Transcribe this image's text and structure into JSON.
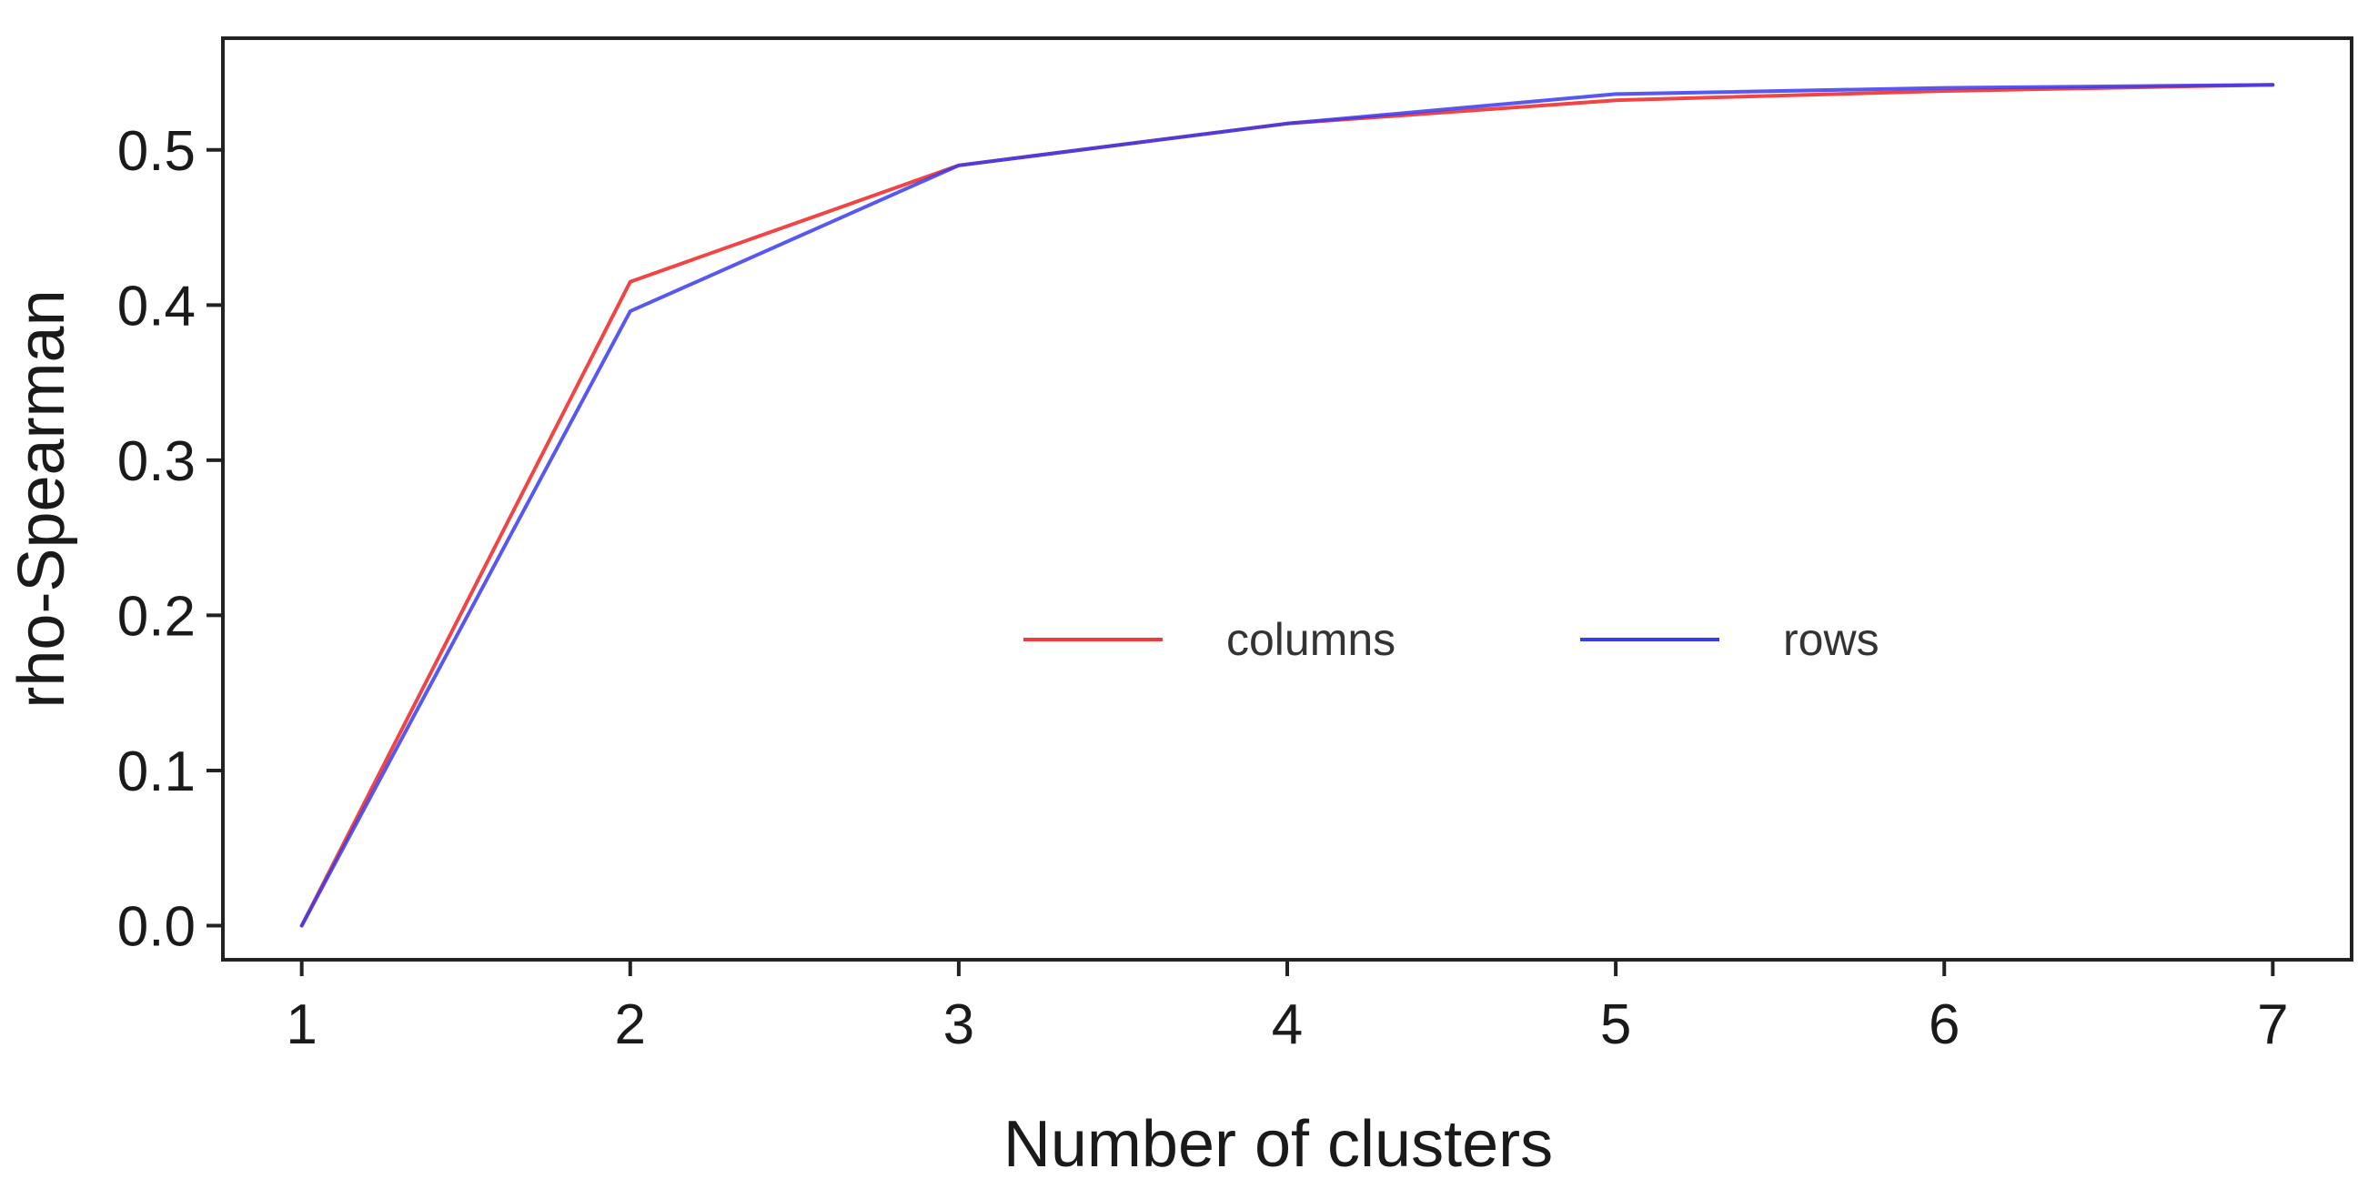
{
  "chart_data": {
    "type": "line",
    "title": "",
    "xlabel": "Number of clusters",
    "ylabel": "rho-Spearman",
    "x": [
      1,
      2,
      3,
      4,
      5,
      6,
      7
    ],
    "xlim": [
      0.76,
      7.24
    ],
    "ylim": [
      -0.022,
      0.572
    ],
    "xticks": [
      "1",
      "2",
      "3",
      "4",
      "5",
      "6",
      "7"
    ],
    "yticks": [
      "0.0",
      "0.1",
      "0.2",
      "0.3",
      "0.4",
      "0.5"
    ],
    "grid": false,
    "legend_position": "center-right",
    "series": [
      {
        "name": "columns",
        "color": "#f03b3b",
        "values": [
          0.0,
          0.415,
          0.49,
          0.517,
          0.532,
          0.538,
          0.542
        ]
      },
      {
        "name": "rows",
        "color": "#3a3af0",
        "values": [
          0.0,
          0.396,
          0.49,
          0.517,
          0.536,
          0.54,
          0.542
        ]
      }
    ]
  }
}
